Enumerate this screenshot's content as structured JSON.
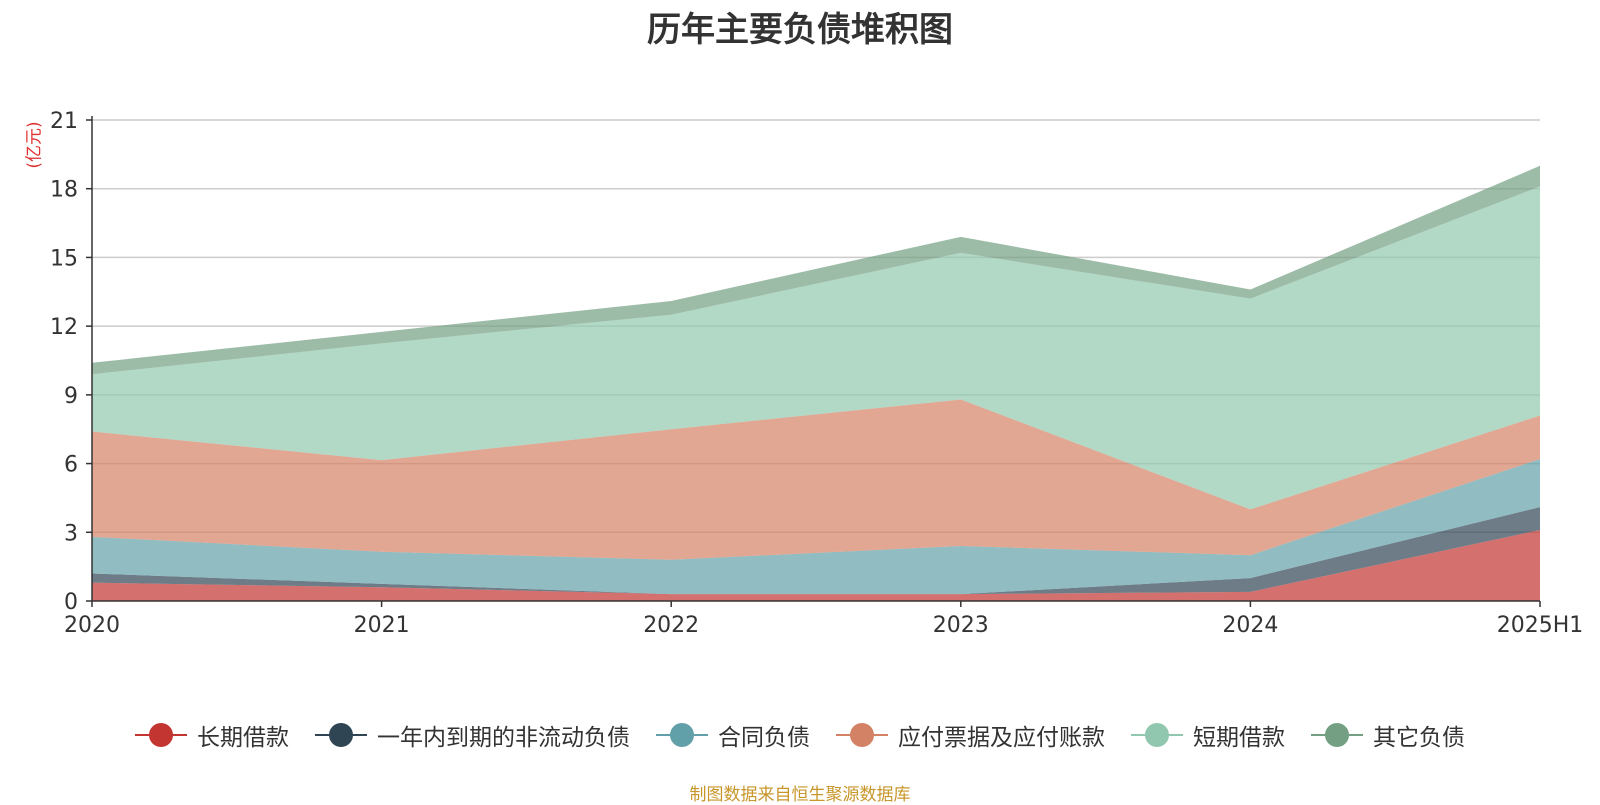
{
  "chart_data": {
    "type": "area",
    "stacked": true,
    "title": "历年主要负债堆积图",
    "unit_label": "(亿元)",
    "categories": [
      "2020",
      "2021",
      "2022",
      "2023",
      "2024",
      "2025H1"
    ],
    "ylim": [
      0,
      21
    ],
    "yticks": [
      0,
      3,
      6,
      9,
      12,
      15,
      18,
      21
    ],
    "grid": true,
    "legend_position": "bottom",
    "series": [
      {
        "name": "长期借款",
        "color": "#c23531",
        "values": [
          0.8,
          0.6,
          0.3,
          0.3,
          0.4,
          3.1
        ]
      },
      {
        "name": "一年内到期的非流动负债",
        "color": "#2f4554",
        "values": [
          0.4,
          0.15,
          0.0,
          0.0,
          0.6,
          1.0
        ]
      },
      {
        "name": "合同负债",
        "color": "#61a0a8",
        "values": [
          1.6,
          1.4,
          1.5,
          2.1,
          1.0,
          2.1
        ]
      },
      {
        "name": "应付票据及应付账款",
        "color": "#d48265",
        "values": [
          4.6,
          4.0,
          5.7,
          6.4,
          2.0,
          1.9
        ]
      },
      {
        "name": "短期借款",
        "color": "#91c7ae",
        "values": [
          2.5,
          5.1,
          5.0,
          6.4,
          9.2,
          10.0
        ]
      },
      {
        "name": "其它负债",
        "color": "#749f83",
        "values": [
          0.5,
          0.5,
          0.6,
          0.7,
          0.4,
          0.9
        ]
      }
    ]
  },
  "footer": {
    "source": "制图数据来自恒生聚源数据库"
  }
}
